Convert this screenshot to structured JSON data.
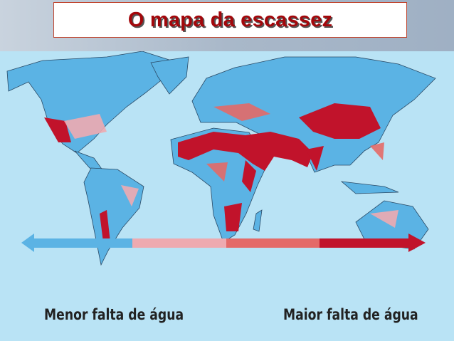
{
  "title": "O mapa da escassez",
  "legend": {
    "left_label": "Menor falta de água",
    "right_label": "Maior falta de água",
    "colors": [
      "#5bb3e4",
      "#eeaab0",
      "#e46a68",
      "#c1132b"
    ]
  },
  "colors": {
    "ocean": "#b9e3f5",
    "land_low": "#5bb3e4",
    "scarcity_high": "#c1132b"
  }
}
